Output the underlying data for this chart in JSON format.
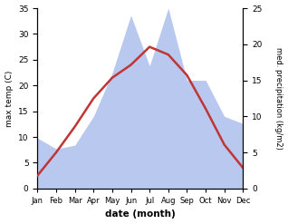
{
  "months": [
    "Jan",
    "Feb",
    "Mar",
    "Apr",
    "May",
    "Jun",
    "Jul",
    "Aug",
    "Sep",
    "Oct",
    "Nov",
    "Dec"
  ],
  "temperature": [
    2.5,
    7.0,
    12.0,
    17.5,
    21.5,
    24.0,
    27.5,
    26.0,
    22.0,
    15.5,
    8.5,
    4.0
  ],
  "precipitation": [
    7.0,
    5.5,
    6.0,
    10.0,
    16.0,
    24.0,
    17.0,
    25.0,
    15.0,
    15.0,
    10.0,
    9.0
  ],
  "temp_ylim": [
    0,
    35
  ],
  "precip_ylim": [
    0,
    25
  ],
  "temp_color": "#c03535",
  "precip_color_fill": "#b8c8ee",
  "xlabel": "date (month)",
  "ylabel_left": "max temp (C)",
  "ylabel_right": "med. precipitation (kg/m2)",
  "temp_yticks": [
    0,
    5,
    10,
    15,
    20,
    25,
    30,
    35
  ],
  "precip_yticks": [
    0,
    5,
    10,
    15,
    20,
    25
  ],
  "linewidth": 1.8
}
